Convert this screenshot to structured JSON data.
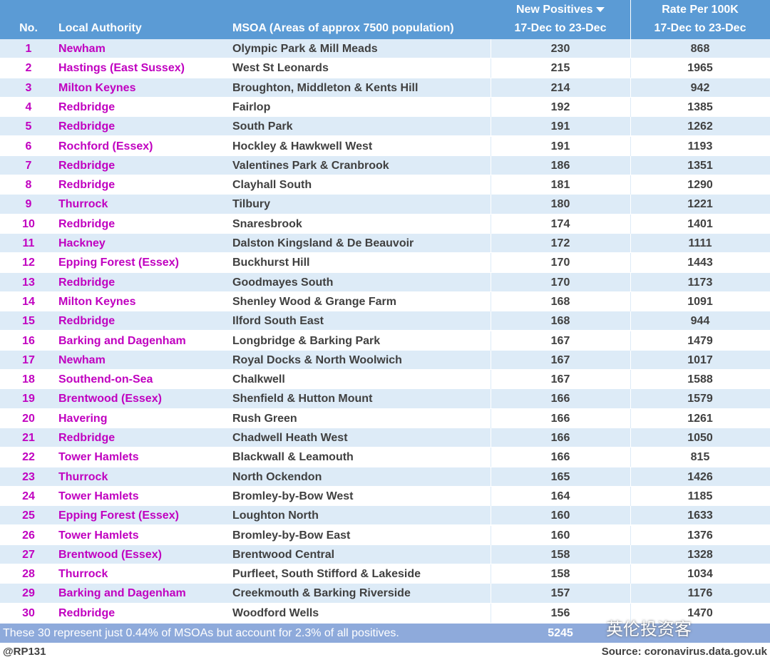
{
  "table": {
    "header": {
      "no": "No.",
      "authority": "Local Authority",
      "msoa": "MSOA (Areas of approx 7500 population)",
      "positives": [
        "New Positives",
        "17-Dec to 23-Dec"
      ],
      "rate": [
        "Rate Per 100K",
        "17-Dec to 23-Dec"
      ]
    },
    "rows": [
      [
        1,
        "Newham",
        "Olympic Park & Mill Meads",
        230,
        868
      ],
      [
        2,
        "Hastings (East Sussex)",
        "West St Leonards",
        215,
        1965
      ],
      [
        3,
        "Milton Keynes",
        "Broughton, Middleton & Kents Hill",
        214,
        942
      ],
      [
        4,
        "Redbridge",
        "Fairlop",
        192,
        1385
      ],
      [
        5,
        "Redbridge",
        "South Park",
        191,
        1262
      ],
      [
        6,
        "Rochford (Essex)",
        "Hockley & Hawkwell West",
        191,
        1193
      ],
      [
        7,
        "Redbridge",
        "Valentines Park & Cranbrook",
        186,
        1351
      ],
      [
        8,
        "Redbridge",
        "Clayhall South",
        181,
        1290
      ],
      [
        9,
        "Thurrock",
        "Tilbury",
        180,
        1221
      ],
      [
        10,
        "Redbridge",
        "Snaresbrook",
        174,
        1401
      ],
      [
        11,
        "Hackney",
        "Dalston Kingsland & De Beauvoir",
        172,
        1111
      ],
      [
        12,
        "Epping Forest (Essex)",
        "Buckhurst Hill",
        170,
        1443
      ],
      [
        13,
        "Redbridge",
        "Goodmayes South",
        170,
        1173
      ],
      [
        14,
        "Milton Keynes",
        "Shenley Wood & Grange Farm",
        168,
        1091
      ],
      [
        15,
        "Redbridge",
        "Ilford South East",
        168,
        944
      ],
      [
        16,
        "Barking and Dagenham",
        "Longbridge & Barking Park",
        167,
        1479
      ],
      [
        17,
        "Newham",
        "Royal Docks & North Woolwich",
        167,
        1017
      ],
      [
        18,
        "Southend-on-Sea",
        "Chalkwell",
        167,
        1588
      ],
      [
        19,
        "Brentwood (Essex)",
        "Shenfield & Hutton Mount",
        166,
        1579
      ],
      [
        20,
        "Havering",
        "Rush Green",
        166,
        1261
      ],
      [
        21,
        "Redbridge",
        "Chadwell Heath West",
        166,
        1050
      ],
      [
        22,
        "Tower Hamlets",
        "Blackwall & Leamouth",
        166,
        815
      ],
      [
        23,
        "Thurrock",
        "North Ockendon",
        165,
        1426
      ],
      [
        24,
        "Tower Hamlets",
        "Bromley-by-Bow West",
        164,
        1185
      ],
      [
        25,
        "Epping Forest (Essex)",
        "Loughton North",
        160,
        1633
      ],
      [
        26,
        "Tower Hamlets",
        "Bromley-by-Bow East",
        160,
        1376
      ],
      [
        27,
        "Brentwood (Essex)",
        "Brentwood Central",
        158,
        1328
      ],
      [
        28,
        "Thurrock",
        "Purfleet, South Stifford & Lakeside",
        158,
        1034
      ],
      [
        29,
        "Barking and Dagenham",
        "Creekmouth & Barking Riverside",
        157,
        1176
      ],
      [
        30,
        "Redbridge",
        "Woodford Wells",
        156,
        1470
      ]
    ],
    "footer": {
      "note": "These 30 represent just 0.44% of MSOAs but account for 2.3% of all positives.",
      "total": 5245
    },
    "credit": "@RP131",
    "source": "Source: coronavirus.data.gov.uk",
    "watermark": "英伦投资客"
  }
}
